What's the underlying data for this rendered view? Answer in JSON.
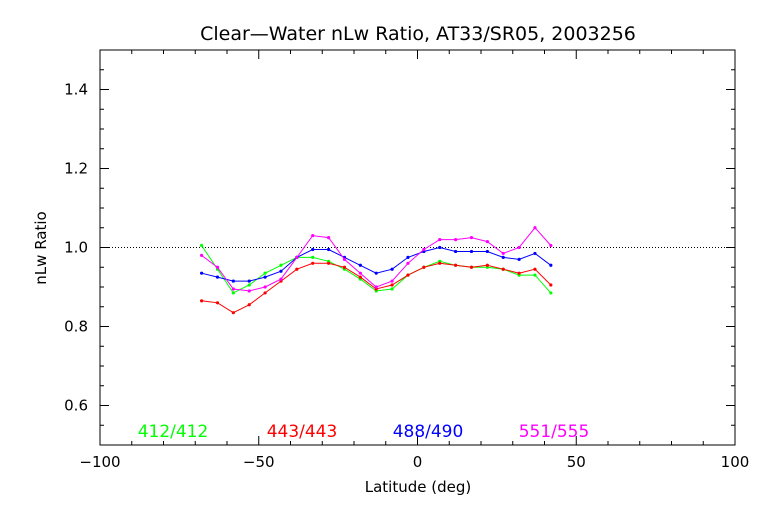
{
  "chart_data": {
    "type": "line",
    "title": "Clear—Water nLw Ratio, AT33/SR05, 2003256",
    "xlabel": "Latitude (deg)",
    "ylabel": "nLw Ratio",
    "xlim": [
      -100,
      100
    ],
    "ylim": [
      0.5,
      1.5
    ],
    "x_ticks": [
      -100,
      -50,
      0,
      50,
      100
    ],
    "x_tick_labels": [
      "−100",
      "−50",
      "0",
      "50",
      "100"
    ],
    "y_ticks": [
      0.6,
      0.8,
      1.0,
      1.2,
      1.4
    ],
    "y_tick_labels": [
      "0.6",
      "0.8",
      "1.0",
      "1.2",
      "1.4"
    ],
    "reference_line": 1.0,
    "x": [
      -68,
      -63,
      -58,
      -53,
      -48,
      -43,
      -38,
      -33,
      -28,
      -23,
      -18,
      -13,
      -8,
      -3,
      2,
      7,
      12,
      17,
      22,
      27,
      32,
      37,
      42
    ],
    "series": [
      {
        "name": "412/412",
        "color": "#00ff00",
        "values": [
          1.005,
          0.945,
          0.885,
          0.905,
          0.935,
          0.955,
          0.975,
          0.975,
          0.965,
          0.945,
          0.92,
          0.89,
          0.895,
          0.93,
          0.95,
          0.965,
          0.955,
          0.95,
          0.95,
          0.945,
          0.93,
          0.93,
          0.885
        ]
      },
      {
        "name": "443/443",
        "color": "#ff0000",
        "values": [
          0.865,
          0.86,
          0.835,
          0.855,
          0.885,
          0.915,
          0.945,
          0.96,
          0.96,
          0.95,
          0.925,
          0.895,
          0.905,
          0.93,
          0.95,
          0.96,
          0.955,
          0.95,
          0.955,
          0.945,
          0.935,
          0.945,
          0.905
        ]
      },
      {
        "name": "488/490",
        "color": "#0000ff",
        "values": [
          0.935,
          0.925,
          0.915,
          0.915,
          0.925,
          0.94,
          0.975,
          0.995,
          0.995,
          0.975,
          0.955,
          0.935,
          0.945,
          0.975,
          0.99,
          1.0,
          0.99,
          0.99,
          0.99,
          0.975,
          0.97,
          0.985,
          0.955
        ]
      },
      {
        "name": "551/555",
        "color": "#ff00ff",
        "values": [
          0.98,
          0.95,
          0.895,
          0.89,
          0.9,
          0.92,
          0.975,
          1.03,
          1.025,
          0.97,
          0.935,
          0.9,
          0.915,
          0.96,
          0.995,
          1.02,
          1.02,
          1.025,
          1.015,
          0.985,
          1.0,
          1.05,
          1.005
        ]
      }
    ],
    "grid": false,
    "legend_placement": "bottom, inside plot area"
  },
  "colors": {
    "background": "#ffffff",
    "axes": "#000000"
  }
}
